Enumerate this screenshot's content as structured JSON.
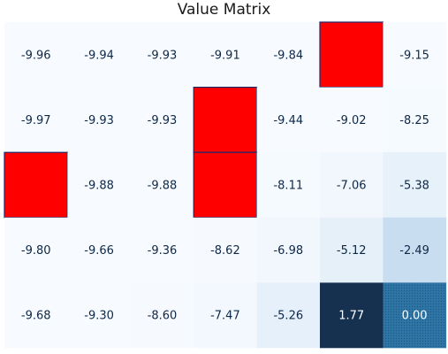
{
  "chart_data": {
    "type": "heatmap",
    "title": "Value Matrix",
    "rows": 5,
    "cols": 7,
    "values": [
      [
        -9.96,
        -9.94,
        -9.93,
        -9.91,
        -9.84,
        null,
        -9.15
      ],
      [
        -9.97,
        -9.93,
        -9.93,
        null,
        -9.44,
        -9.02,
        -8.25
      ],
      [
        null,
        -9.88,
        -9.88,
        null,
        -8.11,
        -7.06,
        -5.38
      ],
      [
        -9.8,
        -9.66,
        -9.36,
        -8.62,
        -6.98,
        -5.12,
        -2.49
      ],
      [
        -9.68,
        -9.3,
        -8.6,
        -7.47,
        -5.26,
        1.77,
        0.0
      ]
    ],
    "labels": [
      [
        "-9.96",
        "-9.94",
        "-9.93",
        "-9.91",
        "-9.84",
        "",
        "-9.15"
      ],
      [
        "-9.97",
        "-9.93",
        "-9.93",
        "",
        "-9.44",
        "-9.02",
        "-8.25"
      ],
      [
        "",
        "-9.88",
        "-9.88",
        "",
        "-8.11",
        "-7.06",
        "-5.38"
      ],
      [
        "-9.80",
        "-9.66",
        "-9.36",
        "-8.62",
        "-6.98",
        "-5.12",
        "-2.49"
      ],
      [
        "-9.68",
        "-9.30",
        "-8.60",
        "-7.47",
        "-5.26",
        "1.77",
        "0.00"
      ]
    ],
    "obstacles": [
      [
        0,
        5
      ],
      [
        1,
        3
      ],
      [
        2,
        0
      ],
      [
        2,
        3
      ]
    ],
    "goal": [
      4,
      6
    ],
    "colormap": "Blues",
    "obstacle_color": "#ff0000",
    "obstacle_border": "#1a2a6c",
    "goal_color": "#2a6fa0",
    "dark_color": "#16304f",
    "grid": false
  }
}
